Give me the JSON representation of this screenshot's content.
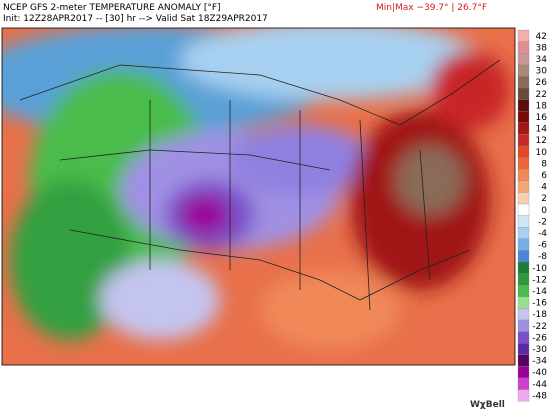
{
  "header": {
    "title": "NCEP GFS 2-meter TEMPERATURE ANOMALY [°F]",
    "subtitle": "Init: 12Z28APR2017 -- [30] hr --> Valid Sat 18Z29APR2017",
    "minmax": "Min|Max −39.7° | 26.7°F"
  },
  "colorbar": {
    "ticks": [
      42,
      38,
      34,
      30,
      26,
      22,
      18,
      16,
      14,
      12,
      10,
      8,
      6,
      4,
      2,
      0,
      -2,
      -4,
      -6,
      -8,
      -10,
      -12,
      -14,
      -16,
      -18,
      -22,
      -26,
      -30,
      -34,
      -40,
      -44,
      -48
    ],
    "colors": [
      "#f4b0b0",
      "#e09090",
      "#c89898",
      "#a88878",
      "#8a6a58",
      "#6a4a3a",
      "#5a1010",
      "#7a0a0a",
      "#a01818",
      "#c82828",
      "#e04828",
      "#ec6838",
      "#f08858",
      "#f4a878",
      "#f8d0b0",
      "#ffffff",
      "#d0e6f6",
      "#a8d0f0",
      "#78b0e6",
      "#4888d6",
      "#1c7a3a",
      "#2c9a3c",
      "#48bc4c",
      "#98e08a",
      "#c4c4f0",
      "#a090e4",
      "#7a50c8",
      "#5a28a8",
      "#5a0060",
      "#9a009a",
      "#d040d0",
      "#f0a8f0"
    ]
  },
  "logo": "WχBell"
}
